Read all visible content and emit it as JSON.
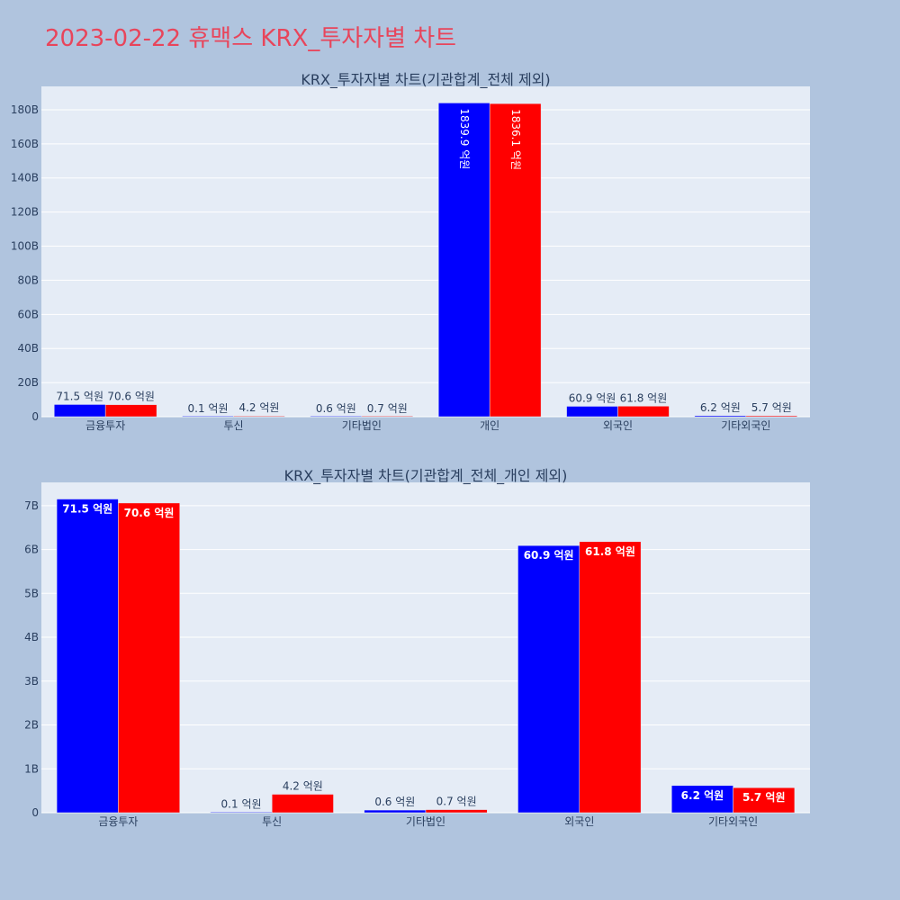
{
  "page_title": "2023-02-22 휴맥스 KRX_투자자별 차트",
  "colors": {
    "series_a": "#0000ff",
    "series_b": "#ff0000",
    "plot_bg": "#e5ecf6",
    "page_bg": "#b0c4de",
    "title": "#e8455b"
  },
  "chart_data": [
    {
      "type": "bar",
      "title": "KRX_투자자별 차트(기관합계_전체 제외)",
      "categories": [
        "금융투자",
        "투신",
        "기타법인",
        "개인",
        "외국인",
        "기타외국인"
      ],
      "series": [
        {
          "values": [
            7.15,
            0.01,
            0.06,
            183.99,
            6.09,
            0.62
          ],
          "labels": [
            "71.5 억원",
            "0.1 억원",
            "0.6 억원",
            "1839.9 억원",
            "60.9 억원",
            "6.2 억원"
          ]
        },
        {
          "values": [
            7.06,
            0.42,
            0.07,
            183.61,
            6.18,
            0.57
          ],
          "labels": [
            "70.6 억원",
            "4.2 억원",
            "0.7 억원",
            "1836.1 억원",
            "61.8 억원",
            "5.7 억원"
          ]
        }
      ],
      "yticks": [
        "0",
        "20B",
        "40B",
        "60B",
        "80B",
        "100B",
        "120B",
        "140B",
        "160B",
        "180B"
      ],
      "ylim": [
        0,
        193.7
      ],
      "unit": "B"
    },
    {
      "type": "bar",
      "title": "KRX_투자자별 차트(기관합계_전체_개인 제외)",
      "categories": [
        "금융투자",
        "투신",
        "기타법인",
        "외국인",
        "기타외국인"
      ],
      "series": [
        {
          "values": [
            7.15,
            0.01,
            0.06,
            6.09,
            0.62
          ],
          "labels": [
            "71.5 억원",
            "0.1 억원",
            "0.6 억원",
            "60.9 억원",
            "6.2 억원"
          ]
        },
        {
          "values": [
            7.06,
            0.42,
            0.07,
            6.18,
            0.57
          ],
          "labels": [
            "70.6 억원",
            "4.2 억원",
            "0.7 억원",
            "61.8 억원",
            "5.7 억원"
          ]
        }
      ],
      "yticks": [
        "0",
        "1B",
        "2B",
        "3B",
        "4B",
        "5B",
        "6B",
        "7B"
      ],
      "ylim": [
        0,
        7.53
      ],
      "unit": "B"
    }
  ]
}
